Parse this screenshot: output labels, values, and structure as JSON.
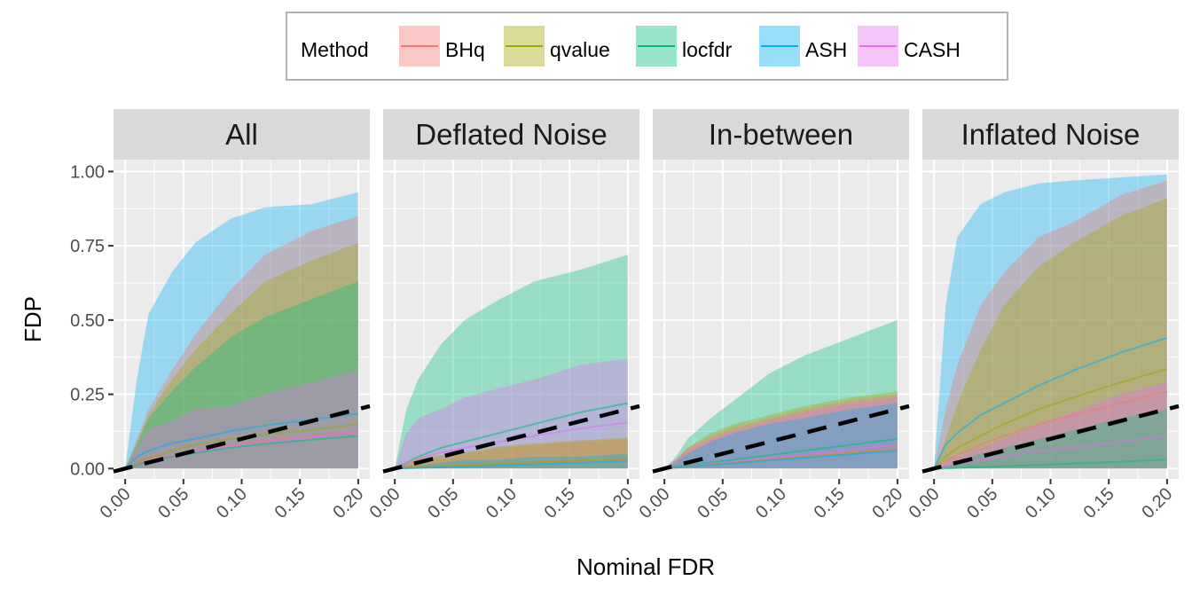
{
  "chart_data": {
    "type": "area",
    "xlabel": "Nominal FDR",
    "ylabel": "FDP",
    "xlim": [
      -0.01,
      0.21
    ],
    "ylim": [
      -0.035,
      1.04
    ],
    "x_ticks": [
      "0.00",
      "0.05",
      "0.10",
      "0.15",
      "0.20"
    ],
    "y_ticks": [
      "0.00",
      "0.25",
      "0.50",
      "0.75",
      "1.00"
    ],
    "grid": true,
    "legend": {
      "title": "Method",
      "placement": "top"
    },
    "methods": [
      {
        "name": "BHq",
        "color": "#F8766D"
      },
      {
        "name": "qvalue",
        "color": "#A3A500"
      },
      {
        "name": "locfdr",
        "color": "#00BF7D"
      },
      {
        "name": "ASH",
        "color": "#00B0F6"
      },
      {
        "name": "CASH",
        "color": "#E76BF3"
      }
    ],
    "reference_line": {
      "slope": 1,
      "intercept": 0,
      "style": "dashed",
      "color": "#000000"
    },
    "x": [
      0,
      0.01,
      0.02,
      0.04,
      0.06,
      0.09,
      0.12,
      0.16,
      0.2
    ],
    "panels": [
      {
        "title": "All",
        "ribbon_upper": {
          "ASH": [
            0,
            0.3,
            0.52,
            0.66,
            0.76,
            0.84,
            0.88,
            0.89,
            0.93
          ],
          "BHq": [
            0,
            0.1,
            0.2,
            0.33,
            0.45,
            0.6,
            0.72,
            0.8,
            0.85
          ],
          "qvalue": [
            0,
            0.09,
            0.18,
            0.3,
            0.4,
            0.52,
            0.63,
            0.7,
            0.76
          ],
          "locfdr": [
            0,
            0.08,
            0.17,
            0.26,
            0.34,
            0.44,
            0.51,
            0.57,
            0.63
          ],
          "CASH": [
            0,
            0.07,
            0.13,
            0.16,
            0.2,
            0.21,
            0.25,
            0.29,
            0.33
          ]
        },
        "mean": {
          "ASH": [
            0,
            0.04,
            0.06,
            0.085,
            0.1,
            0.125,
            0.145,
            0.165,
            0.185
          ],
          "qvalue": [
            0,
            0.02,
            0.035,
            0.06,
            0.08,
            0.1,
            0.115,
            0.13,
            0.15
          ],
          "BHq": [
            0,
            0.015,
            0.03,
            0.045,
            0.06,
            0.08,
            0.095,
            0.11,
            0.125
          ],
          "CASH": [
            0,
            0.014,
            0.028,
            0.042,
            0.057,
            0.076,
            0.09,
            0.105,
            0.12
          ],
          "locfdr": [
            0,
            0.012,
            0.025,
            0.04,
            0.052,
            0.07,
            0.083,
            0.097,
            0.11
          ]
        }
      },
      {
        "title": "Deflated Noise",
        "ribbon_upper": {
          "locfdr": [
            0,
            0.2,
            0.3,
            0.42,
            0.5,
            0.57,
            0.63,
            0.67,
            0.72
          ],
          "CASH": [
            0,
            0.12,
            0.17,
            0.2,
            0.24,
            0.27,
            0.3,
            0.35,
            0.37
          ],
          "BHq": [
            0,
            0.02,
            0.03,
            0.04,
            0.05,
            0.07,
            0.08,
            0.09,
            0.1
          ],
          "qvalue": [
            0,
            0.02,
            0.035,
            0.045,
            0.055,
            0.075,
            0.085,
            0.095,
            0.105
          ],
          "ASH": [
            0,
            0.01,
            0.01,
            0.02,
            0.03,
            0.03,
            0.04,
            0.04,
            0.05
          ]
        },
        "mean": {
          "locfdr": [
            0,
            0.02,
            0.04,
            0.07,
            0.09,
            0.12,
            0.15,
            0.19,
            0.22
          ],
          "CASH": [
            0,
            0.02,
            0.035,
            0.055,
            0.07,
            0.09,
            0.11,
            0.135,
            0.155
          ],
          "BHq": [
            0,
            0.002,
            0.004,
            0.007,
            0.01,
            0.015,
            0.02,
            0.025,
            0.03
          ],
          "qvalue": [
            0,
            0.002,
            0.004,
            0.008,
            0.011,
            0.016,
            0.021,
            0.027,
            0.033
          ],
          "ASH": [
            0,
            0.001,
            0.002,
            0.004,
            0.006,
            0.01,
            0.014,
            0.02,
            0.025
          ]
        }
      },
      {
        "title": "In-between",
        "ribbon_upper": {
          "locfdr": [
            0,
            0.04,
            0.1,
            0.17,
            0.23,
            0.32,
            0.38,
            0.44,
            0.5
          ],
          "qvalue": [
            0,
            0.03,
            0.07,
            0.12,
            0.15,
            0.18,
            0.21,
            0.24,
            0.26
          ],
          "BHq": [
            0,
            0.03,
            0.07,
            0.11,
            0.14,
            0.17,
            0.2,
            0.23,
            0.25
          ],
          "CASH": [
            0,
            0.03,
            0.06,
            0.1,
            0.13,
            0.16,
            0.19,
            0.22,
            0.24
          ],
          "ASH": [
            0,
            0.02,
            0.05,
            0.09,
            0.12,
            0.15,
            0.17,
            0.2,
            0.22
          ]
        },
        "mean": {
          "locfdr": [
            0,
            0.005,
            0.01,
            0.02,
            0.03,
            0.045,
            0.06,
            0.08,
            0.1
          ],
          "CASH": [
            0,
            0.004,
            0.008,
            0.016,
            0.024,
            0.036,
            0.048,
            0.064,
            0.08
          ],
          "BHq": [
            0,
            0.003,
            0.007,
            0.014,
            0.021,
            0.032,
            0.042,
            0.056,
            0.07
          ],
          "qvalue": [
            0,
            0.003,
            0.006,
            0.013,
            0.019,
            0.029,
            0.038,
            0.051,
            0.064
          ],
          "ASH": [
            0,
            0.003,
            0.006,
            0.012,
            0.018,
            0.027,
            0.036,
            0.048,
            0.06
          ]
        }
      },
      {
        "title": "Inflated Noise",
        "ribbon_upper": {
          "ASH": [
            0,
            0.55,
            0.78,
            0.89,
            0.93,
            0.96,
            0.97,
            0.98,
            0.99
          ],
          "BHq": [
            0,
            0.2,
            0.35,
            0.55,
            0.66,
            0.78,
            0.83,
            0.92,
            0.97
          ],
          "qvalue": [
            0,
            0.1,
            0.22,
            0.4,
            0.55,
            0.68,
            0.76,
            0.85,
            0.91
          ],
          "CASH": [
            0,
            0.02,
            0.04,
            0.07,
            0.1,
            0.15,
            0.19,
            0.25,
            0.29
          ],
          "locfdr": [
            0,
            0.01,
            0.02,
            0.05,
            0.07,
            0.1,
            0.13,
            0.17,
            0.2
          ]
        },
        "mean": {
          "ASH": [
            0,
            0.08,
            0.12,
            0.18,
            0.22,
            0.28,
            0.33,
            0.39,
            0.44
          ],
          "qvalue": [
            0,
            0.04,
            0.07,
            0.11,
            0.15,
            0.2,
            0.24,
            0.29,
            0.335
          ],
          "BHq": [
            0,
            0.025,
            0.045,
            0.08,
            0.11,
            0.15,
            0.18,
            0.22,
            0.26
          ],
          "CASH": [
            0,
            0.01,
            0.015,
            0.03,
            0.04,
            0.06,
            0.07,
            0.09,
            0.11
          ],
          "locfdr": [
            0,
            0,
            0.002,
            0.005,
            0.008,
            0.012,
            0.017,
            0.023,
            0.03
          ]
        }
      }
    ]
  }
}
